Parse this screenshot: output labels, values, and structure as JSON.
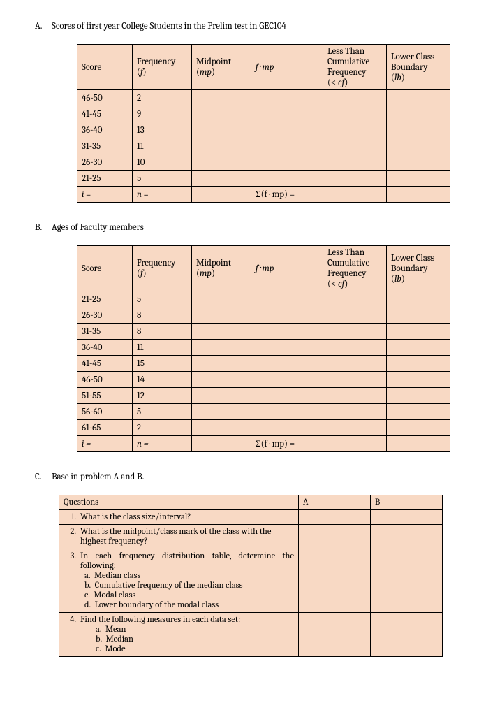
{
  "sectionA": {
    "letter": "A.",
    "title": "Scores of first year College Students in the Prelim test in GEC104",
    "headers": {
      "score": "Score",
      "freq_html": "Frequency<br>(<i>f</i>)",
      "mp_html": "Midpoint<br>(<i>mp</i>)",
      "fmp_html": "<i>f · mp</i>",
      "cf_html": "Less Than<br>Cumulative<br>Frequency<br>(&lt; <i>cf</i>)",
      "lb_html": "Lower Class<br>Boundary<br>(<i>lb</i>)"
    },
    "rows": [
      {
        "score": "46-50",
        "f": "2"
      },
      {
        "score": "41-45",
        "f": "9"
      },
      {
        "score": "36-40",
        "f": "13"
      },
      {
        "score": "31-35",
        "f": "11"
      },
      {
        "score": "26-30",
        "f": "10"
      },
      {
        "score": "21-25",
        "f": "5"
      }
    ],
    "footer": {
      "i": "i =",
      "n": "n =",
      "sigma": "Σ(f · mp) ="
    }
  },
  "sectionB": {
    "letter": "B.",
    "title": "Ages of Faculty members",
    "rows": [
      {
        "score": "21-25",
        "f": "5"
      },
      {
        "score": "26-30",
        "f": "8"
      },
      {
        "score": "31-35",
        "f": "8"
      },
      {
        "score": "36-40",
        "f": "11"
      },
      {
        "score": "41-45",
        "f": "15"
      },
      {
        "score": "46-50",
        "f": "14"
      },
      {
        "score": "51-55",
        "f": "12"
      },
      {
        "score": "56-60",
        "f": "5"
      },
      {
        "score": "61-65",
        "f": "2"
      }
    ],
    "footer": {
      "i": "i =",
      "n": "n =",
      "sigma": "Σ(f · mp) ="
    }
  },
  "sectionC": {
    "letter": "C.",
    "title": "Base in problem A and B.",
    "header": {
      "q": "Questions",
      "a": "A",
      "b": "B"
    },
    "questions": {
      "q1": "What is the class size/interval?",
      "q2": "What is the midpoint/class mark of the class with the highest frequency?",
      "q3": "In each frequency distribution table, determine the following:",
      "q3a": "Median class",
      "q3b": "Cumulative frequency of the median class",
      "q3c": "Modal class",
      "q3d": "Lower boundary of the modal class",
      "q4": "Find the following measures in each data set:",
      "q4a": "Mean",
      "q4b": "Median",
      "q4c": "Mode"
    }
  }
}
